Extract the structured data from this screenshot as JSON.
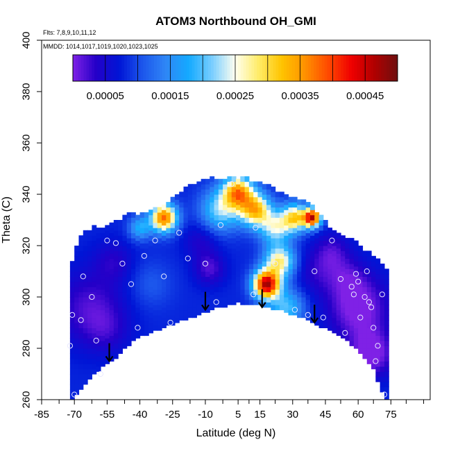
{
  "chart_data": {
    "type": "heatmap",
    "title": "ATOM3 Northbound OH_GMI",
    "xlabel": "Latitude (deg N)",
    "ylabel": "Theta (C)",
    "flights_note": "Flts: 7,8,9,10,11,12",
    "dates_note": "MMDD: 1014,1017,1019,1020,1023,1025",
    "xlim": [
      -85,
      93
    ],
    "ylim": [
      260,
      400
    ],
    "x_ticks": [
      -85,
      -70,
      -55,
      -40,
      -25,
      -10,
      5,
      15,
      30,
      45,
      60,
      75
    ],
    "x_minor_ticks": [
      -77,
      -62,
      -47,
      -32,
      -17,
      -2,
      10,
      22,
      37,
      52,
      67,
      82,
      90
    ],
    "y_ticks": [
      260,
      280,
      300,
      320,
      340,
      360,
      380,
      400
    ],
    "colorbar": {
      "min": 0.0,
      "max": 0.0005,
      "ticks": [
        5e-05,
        0.00015,
        0.00025,
        0.00035,
        0.00045
      ],
      "tick_labels": [
        "0.00005",
        "0.00015",
        "0.00025",
        "0.00035",
        "0.00045"
      ],
      "colors": [
        "#7f21e6",
        "#2400c8",
        "#0015d6",
        "#1c56ec",
        "#2f86f6",
        "#14aaff",
        "#79ceff",
        "#fffff0",
        "#ffec68",
        "#ffc400",
        "#ff9200",
        "#ff4a00",
        "#f00000",
        "#b00000",
        "#6e1010"
      ]
    },
    "domain": {
      "top": [
        [
          -72,
          311
        ],
        [
          -70,
          318
        ],
        [
          -67,
          324
        ],
        [
          -62,
          327
        ],
        [
          -55,
          328
        ],
        [
          -45,
          332
        ],
        [
          -38,
          333
        ],
        [
          -30,
          335
        ],
        [
          -20,
          342
        ],
        [
          -10,
          346
        ],
        [
          0,
          347
        ],
        [
          10,
          346
        ],
        [
          20,
          343
        ],
        [
          30,
          339
        ],
        [
          38,
          336
        ],
        [
          45,
          329
        ],
        [
          52,
          325
        ],
        [
          60,
          321
        ],
        [
          67,
          316
        ],
        [
          73,
          311
        ]
      ],
      "bottom": [
        [
          -72,
          259
        ],
        [
          -62,
          270
        ],
        [
          -52,
          276
        ],
        [
          -42,
          284
        ],
        [
          -30,
          288
        ],
        [
          -18,
          292
        ],
        [
          -5,
          296
        ],
        [
          5,
          298
        ],
        [
          15,
          297
        ],
        [
          25,
          295
        ],
        [
          35,
          292
        ],
        [
          45,
          288
        ],
        [
          52,
          285
        ],
        [
          60,
          280
        ],
        [
          67,
          272
        ],
        [
          73,
          259
        ]
      ]
    },
    "field": {
      "background": 8e-05,
      "blobs": [
        {
          "x": -63,
          "y": 296,
          "r": 16,
          "v": -6e-05
        },
        {
          "x": -55,
          "y": 287,
          "r": 10,
          "v": -3e-05
        },
        {
          "x": -52,
          "y": 314,
          "r": 9,
          "v": -4e-05
        },
        {
          "x": -35,
          "y": 305,
          "r": 10,
          "v": 3e-05
        },
        {
          "x": -29,
          "y": 331,
          "r": 6,
          "v": 0.0003
        },
        {
          "x": -40,
          "y": 327,
          "r": 5,
          "v": 0.0001
        },
        {
          "x": -8,
          "y": 311,
          "r": 7,
          "v": -6e-05
        },
        {
          "x": -12,
          "y": 322,
          "r": 8,
          "v": -4e-05
        },
        {
          "x": -3,
          "y": 334,
          "r": 9,
          "v": 0.00014
        },
        {
          "x": 5,
          "y": 341,
          "r": 7,
          "v": 0.00026
        },
        {
          "x": 13,
          "y": 334,
          "r": 7,
          "v": 0.00024
        },
        {
          "x": 18,
          "y": 305,
          "r": 6,
          "v": 0.00038
        },
        {
          "x": 24,
          "y": 314,
          "r": 7,
          "v": 0.0002
        },
        {
          "x": 22,
          "y": 327,
          "r": 7,
          "v": 0.00015
        },
        {
          "x": 31,
          "y": 331,
          "r": 6,
          "v": 0.00022
        },
        {
          "x": 39,
          "y": 331,
          "r": 4,
          "v": 0.00035
        },
        {
          "x": 27,
          "y": 296,
          "r": 8,
          "v": 0.00012
        },
        {
          "x": 41,
          "y": 310,
          "r": 10,
          "v": -4e-05
        },
        {
          "x": 48,
          "y": 318,
          "r": 8,
          "v": -5e-05
        },
        {
          "x": 60,
          "y": 296,
          "r": 14,
          "v": -9e-05
        },
        {
          "x": 66,
          "y": 278,
          "r": 10,
          "v": -9e-05
        },
        {
          "x": 55,
          "y": 308,
          "r": 9,
          "v": -4e-05
        }
      ]
    },
    "observations": [
      {
        "lat": -70,
        "theta": 262
      },
      {
        "lat": -72,
        "theta": 281
      },
      {
        "lat": -71,
        "theta": 293
      },
      {
        "lat": -67,
        "theta": 291
      },
      {
        "lat": -66,
        "theta": 308
      },
      {
        "lat": -62,
        "theta": 300
      },
      {
        "lat": -60,
        "theta": 283
      },
      {
        "lat": -58,
        "theta": 270
      },
      {
        "lat": -55,
        "theta": 322
      },
      {
        "lat": -51,
        "theta": 321
      },
      {
        "lat": -48,
        "theta": 313
      },
      {
        "lat": -44,
        "theta": 305
      },
      {
        "lat": -41,
        "theta": 288
      },
      {
        "lat": -38,
        "theta": 316
      },
      {
        "lat": -33,
        "theta": 322
      },
      {
        "lat": -29,
        "theta": 308
      },
      {
        "lat": -26,
        "theta": 290
      },
      {
        "lat": -22,
        "theta": 325
      },
      {
        "lat": -18,
        "theta": 315
      },
      {
        "lat": -10,
        "theta": 313
      },
      {
        "lat": -5,
        "theta": 298
      },
      {
        "lat": -3,
        "theta": 328
      },
      {
        "lat": 2,
        "theta": 344
      },
      {
        "lat": 12,
        "theta": 301
      },
      {
        "lat": 13,
        "theta": 327
      },
      {
        "lat": 22,
        "theta": 313
      },
      {
        "lat": 31,
        "theta": 295
      },
      {
        "lat": 37,
        "theta": 293
      },
      {
        "lat": 40,
        "theta": 310
      },
      {
        "lat": 44,
        "theta": 292
      },
      {
        "lat": 48,
        "theta": 322
      },
      {
        "lat": 52,
        "theta": 307
      },
      {
        "lat": 54,
        "theta": 286
      },
      {
        "lat": 57,
        "theta": 304
      },
      {
        "lat": 58,
        "theta": 301
      },
      {
        "lat": 59,
        "theta": 309
      },
      {
        "lat": 60,
        "theta": 306
      },
      {
        "lat": 61,
        "theta": 292
      },
      {
        "lat": 63,
        "theta": 300
      },
      {
        "lat": 64,
        "theta": 310
      },
      {
        "lat": 65,
        "theta": 298
      },
      {
        "lat": 66,
        "theta": 296
      },
      {
        "lat": 67,
        "theta": 288
      },
      {
        "lat": 68,
        "theta": 275
      },
      {
        "lat": 71,
        "theta": 301
      },
      {
        "lat": 72,
        "theta": 262
      },
      {
        "lat": 69,
        "theta": 281
      }
    ],
    "arrows": [
      {
        "lat": -54,
        "theta_top": 282,
        "theta_tip": 275
      },
      {
        "lat": -10,
        "theta_top": 302,
        "theta_tip": 295
      },
      {
        "lat": 16,
        "theta_top": 303,
        "theta_tip": 296
      },
      {
        "lat": 40,
        "theta_top": 297,
        "theta_tip": 290
      }
    ]
  }
}
